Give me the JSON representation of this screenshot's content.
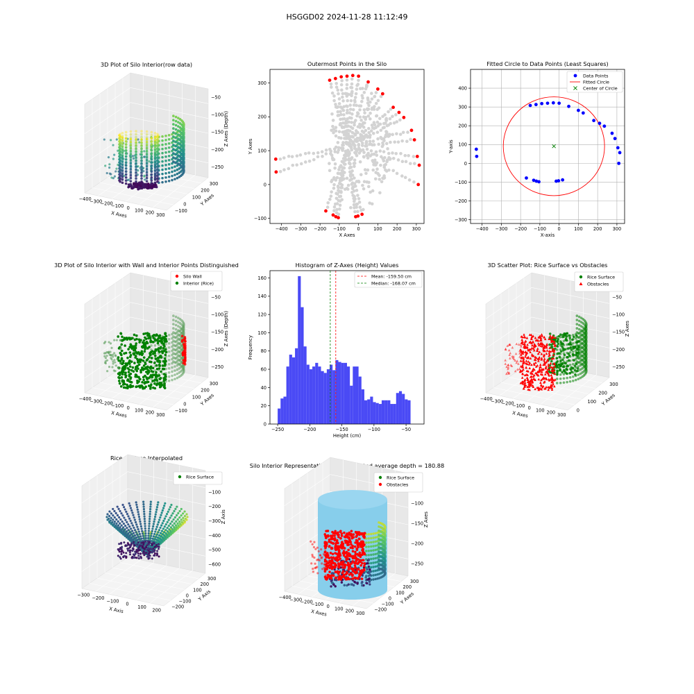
{
  "figure_title": "HSGGD02 2024-11-28 11:12:49",
  "chart_data": [
    {
      "id": "p1",
      "type": "scatter3d",
      "title": "3D Plot of Silo Interior(row data)",
      "xlabel": "X Axes",
      "ylabel": "Y Axes",
      "zlabel": "Z Axes (Depth)",
      "x_ticks": [
        "−400",
        "−300",
        "−200",
        "−100",
        "0",
        "100",
        "200",
        "300"
      ],
      "y_ticks": [
        "−100",
        "0",
        "100",
        "200",
        "300"
      ],
      "z_ticks": [
        "−50",
        "−100",
        "−150",
        "−200",
        "−250"
      ],
      "colormap": [
        "#440154",
        "#3b528b",
        "#21918c",
        "#5ec962",
        "#fde725"
      ]
    },
    {
      "id": "p2",
      "type": "scatter",
      "title": "Outermost Points in the Silo",
      "xlabel": "X Axes",
      "ylabel": "Y Axes",
      "xlim": [
        -460,
        340
      ],
      "ylim": [
        -115,
        340
      ],
      "x_ticks": [
        -400,
        -300,
        -200,
        -100,
        0,
        100,
        200,
        300
      ],
      "y_ticks": [
        -100,
        0,
        100,
        200,
        300
      ],
      "all_points_color": "#d3d3d3",
      "outer_points_color": "#ff0000",
      "outer_points": [
        [
          -430,
          75
        ],
        [
          -428,
          37
        ],
        [
          -170,
          -78
        ],
        [
          -132,
          -90
        ],
        [
          -118,
          -95
        ],
        [
          -105,
          -98
        ],
        [
          -15,
          -95
        ],
        [
          -3,
          -93
        ],
        [
          18,
          -88
        ],
        [
          -150,
          308
        ],
        [
          -120,
          313
        ],
        [
          -90,
          318
        ],
        [
          -60,
          320
        ],
        [
          -30,
          322
        ],
        [
          0,
          320
        ],
        [
          50,
          303
        ],
        [
          100,
          282
        ],
        [
          125,
          268
        ],
        [
          180,
          228
        ],
        [
          210,
          213
        ],
        [
          235,
          198
        ],
        [
          275,
          160
        ],
        [
          290,
          132
        ],
        [
          305,
          83
        ],
        [
          315,
          57
        ],
        [
          310,
          0
        ]
      ]
    },
    {
      "id": "p3",
      "type": "scatter",
      "title": "Fitted Circle to Data Points (Least Squares)",
      "xlabel": "X-axis",
      "ylabel": "Y-axis",
      "xlim": [
        -460,
        340
      ],
      "ylim": [
        -320,
        500
      ],
      "x_ticks": [
        -400,
        -300,
        -200,
        -100,
        0,
        100,
        200,
        300
      ],
      "y_ticks": [
        -300,
        -200,
        -100,
        0,
        100,
        200,
        300,
        400
      ],
      "grid": true,
      "legend": [
        "Data Points",
        "Fitted Circle",
        "Center of Circle"
      ],
      "legend_position": "top-right",
      "data_points_color": "#0000ff",
      "circle_color": "#ff0000",
      "center_color": "#008000",
      "center": [
        -27,
        91
      ],
      "radius": 263,
      "data_points": [
        [
          -430,
          75
        ],
        [
          -428,
          37
        ],
        [
          -170,
          -78
        ],
        [
          -132,
          -90
        ],
        [
          -118,
          -95
        ],
        [
          -105,
          -98
        ],
        [
          -15,
          -95
        ],
        [
          -3,
          -93
        ],
        [
          18,
          -88
        ],
        [
          -150,
          308
        ],
        [
          -120,
          313
        ],
        [
          -90,
          318
        ],
        [
          -60,
          320
        ],
        [
          -30,
          322
        ],
        [
          0,
          320
        ],
        [
          50,
          303
        ],
        [
          100,
          282
        ],
        [
          125,
          268
        ],
        [
          180,
          228
        ],
        [
          210,
          213
        ],
        [
          235,
          198
        ],
        [
          275,
          160
        ],
        [
          290,
          132
        ],
        [
          305,
          83
        ],
        [
          315,
          57
        ],
        [
          310,
          0
        ]
      ]
    },
    {
      "id": "p4",
      "type": "scatter3d",
      "title": "3D Plot of Silo Interior with Wall and Interior Points Distinguished",
      "xlabel": "X Axes",
      "ylabel": "Y Axes",
      "zlabel": "Z Axes (Depth)",
      "x_ticks": [
        "−400",
        "−300",
        "−200",
        "−100",
        "0",
        "100",
        "200",
        "300"
      ],
      "y_ticks": [
        "−100",
        "0",
        "100",
        "200",
        "300"
      ],
      "z_ticks": [
        "−50",
        "−100",
        "−150",
        "−200",
        "−250"
      ],
      "legend": [
        "Silo Wall",
        "Interior (Rice)"
      ],
      "legend_position": "top-right",
      "wall_color": "#ff0000",
      "interior_color": "#008000"
    },
    {
      "id": "p5",
      "type": "histogram",
      "title": "Histogram of Z-Axes (Height) Values",
      "xlabel": "Height (cm)",
      "ylabel": "Frequency",
      "xlim": [
        -262,
        -22
      ],
      "ylim": [
        0,
        168
      ],
      "x_ticks": [
        -250,
        -200,
        -150,
        -100,
        -50
      ],
      "y_ticks": [
        0,
        20,
        40,
        60,
        80,
        100,
        120,
        140,
        160
      ],
      "bin_start": -250,
      "bin_width": 4.5,
      "bar_color": "#4a4af5",
      "counts": [
        17,
        28,
        30,
        63,
        76,
        73,
        83,
        162,
        128,
        85,
        65,
        60,
        63,
        67,
        63,
        58,
        56,
        60,
        65,
        59,
        70,
        68,
        67,
        67,
        63,
        42,
        63,
        63,
        52,
        38,
        26,
        27,
        30,
        24,
        23,
        22,
        26,
        26,
        26,
        22,
        22,
        34,
        36,
        33,
        27,
        26
      ],
      "mean": -159.5,
      "median": -168.07,
      "mean_label": "Mean: -159.50 cm",
      "median_label": "Median: -168.07 cm",
      "mean_color": "#ff0000",
      "median_color": "#008000",
      "legend_position": "top-right"
    },
    {
      "id": "p6",
      "type": "scatter3d",
      "title": "3D Scatter Plot: Rice Surface vs Obstacles",
      "xlabel": "X Axes",
      "ylabel": "Y Axes",
      "zlabel": "Z Axes",
      "x_ticks": [
        "−400",
        "−300",
        "−200",
        "−100",
        "0",
        "100",
        "200",
        "300"
      ],
      "y_ticks": [
        "0",
        "100",
        "200",
        "300"
      ],
      "z_ticks": [
        "−50",
        "−100",
        "−150",
        "−200",
        "−250"
      ],
      "legend": [
        "Rice Surface",
        "Obstacles"
      ],
      "legend_position": "top-right",
      "rice_color": "#008000",
      "obstacle_color": "#ff0000"
    },
    {
      "id": "p7",
      "type": "surface3d",
      "title": "Rice Surface Interpolated",
      "subtitle": "depth = 180.88",
      "xlabel": "X Axis",
      "ylabel": "Y Axis",
      "zlabel": "Z Axis",
      "x_ticks": [
        "−300",
        "−200",
        "−100",
        "0",
        "100",
        "200"
      ],
      "y_ticks": [
        "−200",
        "−100",
        "0",
        "100",
        "200",
        "300"
      ],
      "z_ticks": [
        "0",
        "−100",
        "−200",
        "−300",
        "−400",
        "−500",
        "−600"
      ],
      "legend": [
        "Rice Surface"
      ],
      "legend_position": "top-right"
    },
    {
      "id": "p8",
      "type": "scatter3d",
      "title": "Silo Interior Representation using weighted average depth = 180.88",
      "xlabel": "X Axes",
      "ylabel": "Y Axes",
      "zlabel": "Z Axes",
      "x_ticks": [
        "−400",
        "−300",
        "−200",
        "−100",
        "0",
        "100",
        "200",
        "300"
      ],
      "y_ticks": [
        "−200",
        "−100",
        "0",
        "100",
        "200",
        "300"
      ],
      "z_ticks": [
        "−50",
        "−100",
        "−150",
        "−200",
        "−250"
      ],
      "legend": [
        "Rice Surface",
        "Obstacles"
      ],
      "legend_position": "top-right",
      "cylinder_color": "#87ceeb"
    }
  ]
}
